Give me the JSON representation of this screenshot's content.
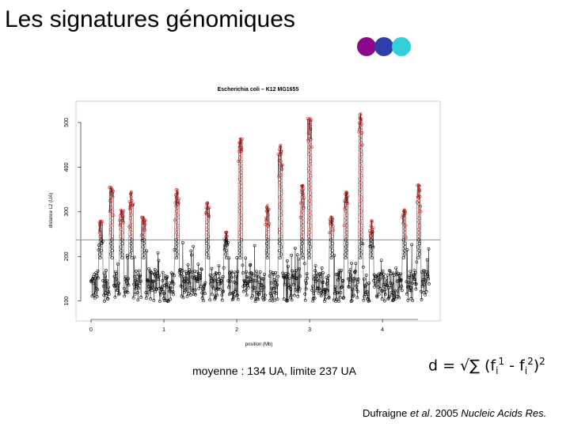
{
  "slide": {
    "title": "Les signatures génomiques",
    "dot_colors": [
      "#8b0a8c",
      "#2f3ea8",
      "#33cfd6"
    ],
    "caption": "moyenne : 134 UA, limite 237 UA",
    "formula": {
      "lhs": "d = √∑ (f",
      "sub1": "i",
      "sup1": "1",
      "mid": " - f",
      "sub2": "i",
      "sup2": "2",
      "close": ")",
      "power": "2"
    },
    "citation": {
      "author": "Dufraigne ",
      "etal": "et al",
      "year": ". 2005 ",
      "journal": "Nucleic Acids Res."
    }
  },
  "chart_data": {
    "type": "scatter",
    "title": "Escherichia coli – K12 MG1655",
    "xlabel": "position (Mb)",
    "ylabel": "distance L2 (UA)",
    "xlim": [
      0,
      4.64
    ],
    "ylim": [
      80,
      530
    ],
    "x_ticks": [
      0,
      1,
      2,
      3,
      4
    ],
    "x_tick_labels": [
      "0",
      "1",
      "2",
      "3",
      "4"
    ],
    "y_ticks": [
      100,
      200,
      300,
      400,
      500
    ],
    "y_tick_labels": [
      "100",
      "200",
      "300",
      "400",
      "500"
    ],
    "threshold": 237,
    "mean": 134,
    "grid": false,
    "colors": {
      "normal": "#000000",
      "above_threshold": "#d42a2a",
      "threshold_line": "#7f8fc0"
    },
    "peaks": [
      {
        "x": 0.13,
        "y": 280
      },
      {
        "x": 0.28,
        "y": 355
      },
      {
        "x": 0.42,
        "y": 305
      },
      {
        "x": 0.55,
        "y": 345
      },
      {
        "x": 0.72,
        "y": 290
      },
      {
        "x": 1.18,
        "y": 350
      },
      {
        "x": 1.6,
        "y": 320
      },
      {
        "x": 1.85,
        "y": 255
      },
      {
        "x": 2.05,
        "y": 465
      },
      {
        "x": 2.42,
        "y": 315
      },
      {
        "x": 2.6,
        "y": 450
      },
      {
        "x": 2.9,
        "y": 360
      },
      {
        "x": 3.0,
        "y": 510
      },
      {
        "x": 3.3,
        "y": 290
      },
      {
        "x": 3.5,
        "y": 345
      },
      {
        "x": 3.7,
        "y": 520
      },
      {
        "x": 3.85,
        "y": 280
      },
      {
        "x": 4.3,
        "y": 305
      },
      {
        "x": 4.5,
        "y": 360
      }
    ]
  }
}
